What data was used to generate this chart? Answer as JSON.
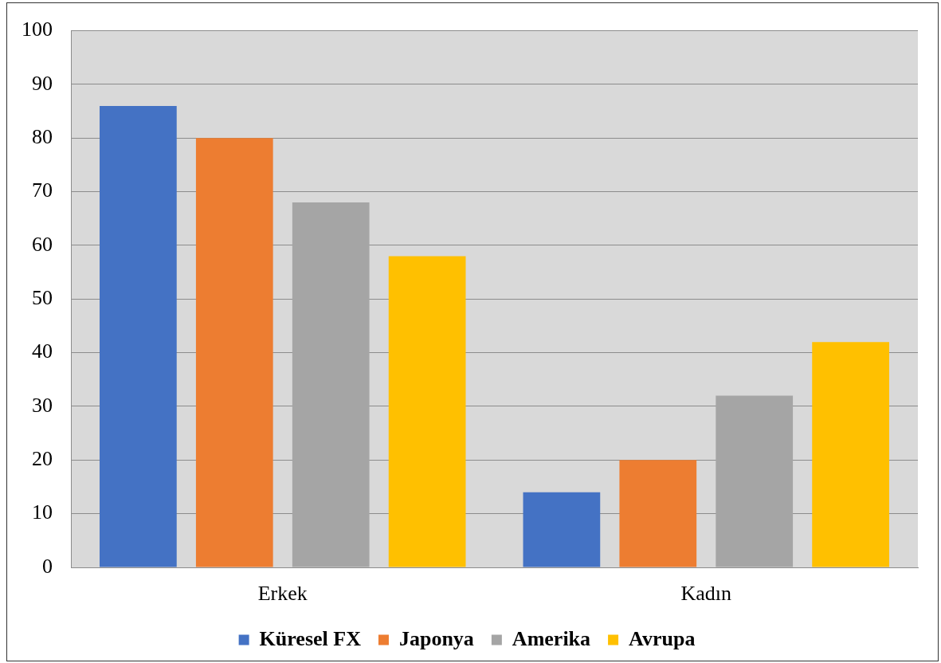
{
  "chart_data": {
    "type": "bar",
    "categories": [
      "Erkek",
      "Kadın"
    ],
    "series": [
      {
        "name": "Küresel FX",
        "color": "#4472c4",
        "values": [
          86,
          14
        ]
      },
      {
        "name": "Japonya",
        "color": "#ed7d31",
        "values": [
          80,
          20
        ]
      },
      {
        "name": "Amerika",
        "color": "#a5a5a5",
        "values": [
          68,
          32
        ]
      },
      {
        "name": "Avrupa",
        "color": "#ffc000",
        "values": [
          58,
          42
        ]
      }
    ],
    "ylim": [
      0,
      100
    ],
    "yticks": [
      0,
      10,
      20,
      30,
      40,
      50,
      60,
      70,
      80,
      90,
      100
    ],
    "grid": "y",
    "legend": "bottom"
  }
}
